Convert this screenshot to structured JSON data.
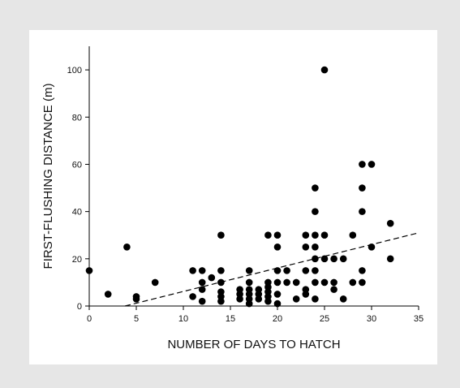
{
  "chart_data": {
    "type": "scatter",
    "title": "",
    "xlabel": "NUMBER OF DAYS TO HATCH",
    "ylabel": "FIRST-FLUSHING DISTANCE (m)",
    "xlim": [
      0,
      35
    ],
    "ylim": [
      0,
      110
    ],
    "xticks": [
      0,
      5,
      10,
      15,
      20,
      25,
      30,
      35
    ],
    "yticks": [
      0,
      20,
      40,
      60,
      80,
      100
    ],
    "grid": false,
    "point_color": "#000000",
    "trendline": {
      "style": "dashed",
      "from": [
        3.8,
        0
      ],
      "to": [
        35,
        31
      ]
    },
    "points": [
      [
        0,
        15
      ],
      [
        2,
        5
      ],
      [
        4,
        25
      ],
      [
        5,
        4
      ],
      [
        5,
        3
      ],
      [
        7,
        10
      ],
      [
        11,
        15
      ],
      [
        11,
        4
      ],
      [
        12,
        15
      ],
      [
        12,
        10
      ],
      [
        12,
        7
      ],
      [
        12,
        2
      ],
      [
        13,
        12
      ],
      [
        14,
        30
      ],
      [
        14,
        15
      ],
      [
        14,
        10
      ],
      [
        14,
        6
      ],
      [
        14,
        4
      ],
      [
        14,
        2
      ],
      [
        16,
        7
      ],
      [
        16,
        5
      ],
      [
        16,
        3
      ],
      [
        17,
        15
      ],
      [
        17,
        10
      ],
      [
        17,
        7
      ],
      [
        17,
        5
      ],
      [
        17,
        3
      ],
      [
        17,
        1
      ],
      [
        18,
        7
      ],
      [
        18,
        5
      ],
      [
        18,
        3
      ],
      [
        19,
        30
      ],
      [
        19,
        10
      ],
      [
        19,
        8
      ],
      [
        19,
        6
      ],
      [
        19,
        4
      ],
      [
        19,
        2
      ],
      [
        20,
        30
      ],
      [
        20,
        25
      ],
      [
        20,
        15
      ],
      [
        20,
        10
      ],
      [
        20,
        5
      ],
      [
        20,
        1
      ],
      [
        21,
        15
      ],
      [
        21,
        10
      ],
      [
        22,
        10
      ],
      [
        22,
        3
      ],
      [
        23,
        30
      ],
      [
        23,
        25
      ],
      [
        23,
        15
      ],
      [
        23,
        7
      ],
      [
        23,
        5
      ],
      [
        24,
        50
      ],
      [
        24,
        40
      ],
      [
        24,
        30
      ],
      [
        24,
        25
      ],
      [
        24,
        20
      ],
      [
        24,
        15
      ],
      [
        24,
        10
      ],
      [
        24,
        3
      ],
      [
        25,
        100
      ],
      [
        25,
        30
      ],
      [
        25,
        20
      ],
      [
        25,
        10
      ],
      [
        26,
        20
      ],
      [
        26,
        10
      ],
      [
        26,
        7
      ],
      [
        27,
        20
      ],
      [
        27,
        3
      ],
      [
        28,
        30
      ],
      [
        28,
        10
      ],
      [
        29,
        60
      ],
      [
        29,
        50
      ],
      [
        29,
        40
      ],
      [
        29,
        15
      ],
      [
        29,
        10
      ],
      [
        30,
        60
      ],
      [
        30,
        25
      ],
      [
        32,
        35
      ],
      [
        32,
        20
      ]
    ]
  }
}
